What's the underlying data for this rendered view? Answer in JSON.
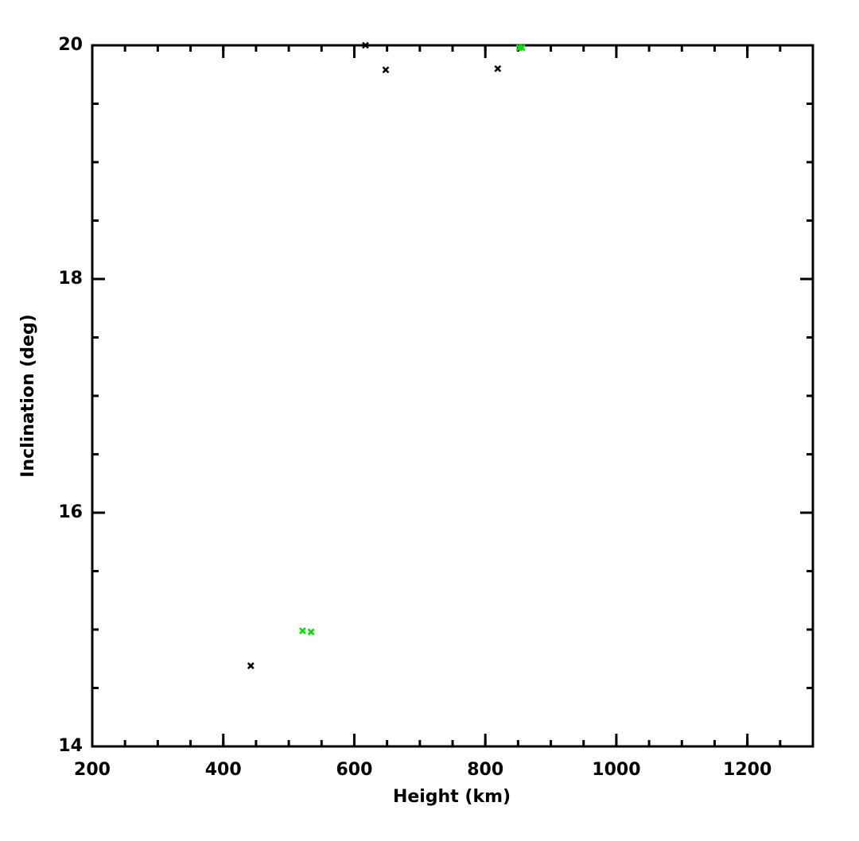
{
  "chart_data": {
    "type": "scatter",
    "x_label": "Height (km)",
    "y_label": "Inclination (deg)",
    "xlim": [
      200,
      1300
    ],
    "xticks": [
      200,
      400,
      600,
      800,
      1000,
      1200
    ],
    "ylim": [
      14,
      20
    ],
    "yticks": [
      14,
      16,
      18,
      20
    ],
    "series": [
      {
        "color": "#000000",
        "x": [
          617,
          648,
          819,
          442
        ],
        "values": [
          20,
          19.79,
          19.8,
          14.69
        ]
      },
      {
        "color": "#00e000",
        "x": [
          852,
          856,
          521,
          534
        ],
        "values": [
          19.98,
          19.98,
          14.99,
          14.98
        ]
      }
    ]
  }
}
